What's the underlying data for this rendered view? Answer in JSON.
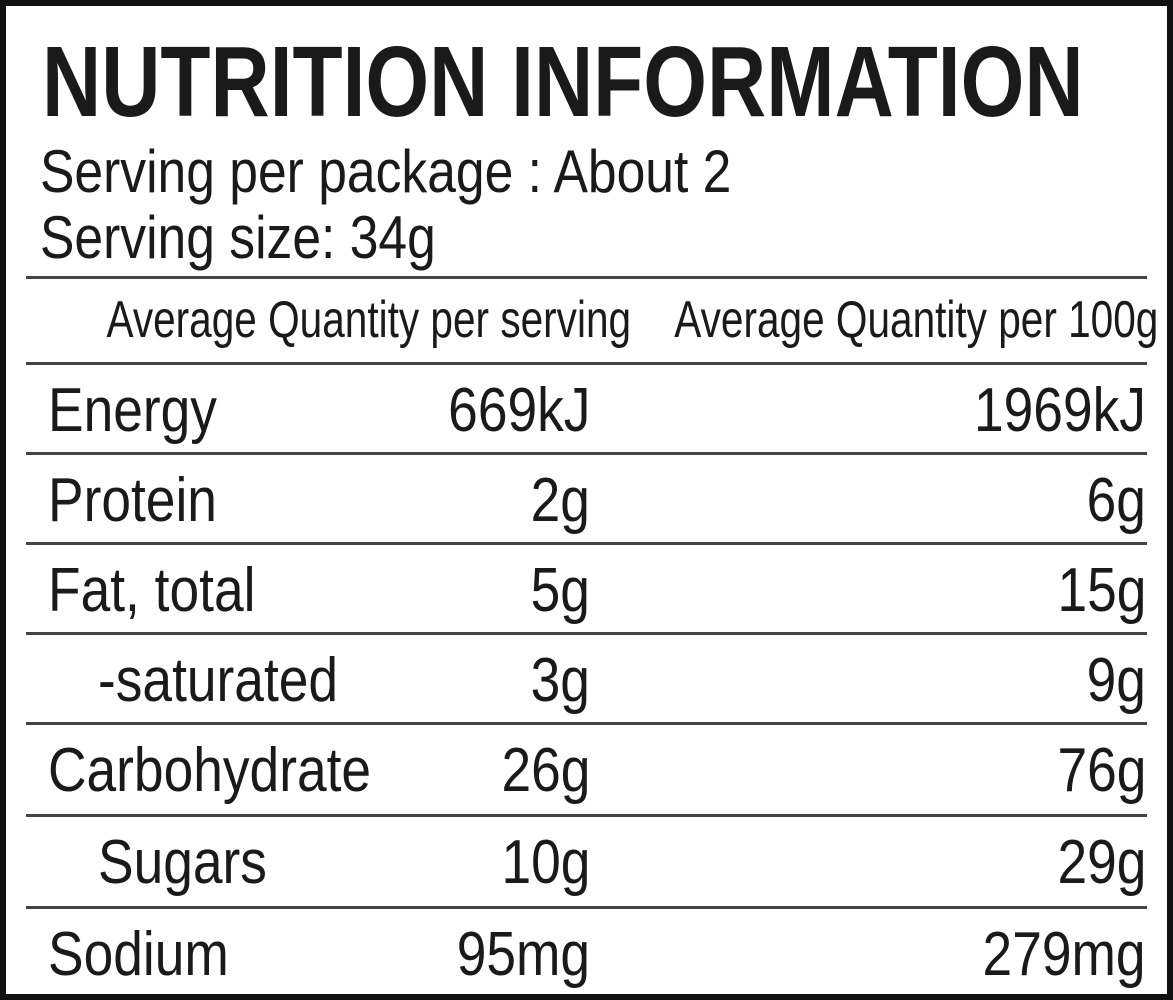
{
  "title": "NUTRITION INFORMATION",
  "serving_per_package": "Serving per package : About 2",
  "serving_size": "Serving size: 34g",
  "table": {
    "header": [
      "Average Quantity per serving",
      "Average Quantity per 100g"
    ],
    "rows": [
      [
        "Energy",
        "669kJ",
        "1969kJ"
      ],
      [
        "Protein",
        "2g",
        "6g"
      ],
      [
        "Fat, total",
        "5g",
        "15g"
      ],
      [
        "-saturated",
        "3g",
        "9g"
      ],
      [
        "Carbohydrate",
        "26g",
        "76g"
      ],
      [
        "Sugars",
        "10g",
        "29g"
      ],
      [
        "Sodium",
        "95mg",
        "279mg"
      ]
    ]
  }
}
